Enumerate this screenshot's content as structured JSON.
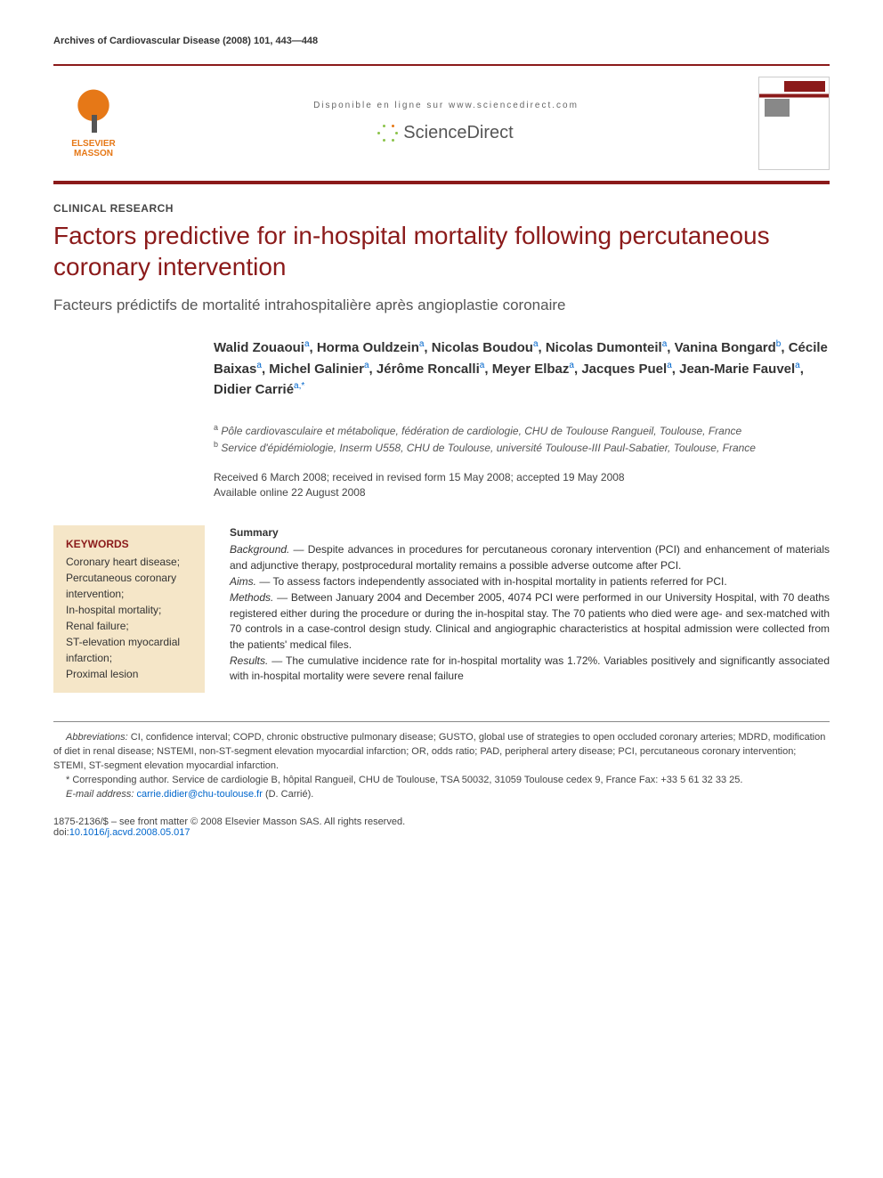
{
  "running_head": "Archives of Cardiovascular Disease (2008) 101, 443—448",
  "banner": {
    "publisher": "ELSEVIER MASSON",
    "available_line": "Disponible en ligne sur www.sciencedirect.com",
    "sd_brand": "ScienceDirect",
    "colors": {
      "brand_red": "#8b1a1a",
      "orange": "#e67817",
      "green": "#8bc34a"
    }
  },
  "section_label": "CLINICAL RESEARCH",
  "title": "Factors predictive for in-hospital mortality following percutaneous coronary intervention",
  "subtitle": "Facteurs prédictifs de mortalité intrahospitalière après angioplastie coronaire",
  "authors": [
    {
      "name": "Walid Zouaoui",
      "aff": "a"
    },
    {
      "name": "Horma Ouldzein",
      "aff": "a"
    },
    {
      "name": "Nicolas Boudou",
      "aff": "a"
    },
    {
      "name": "Nicolas Dumonteil",
      "aff": "a"
    },
    {
      "name": "Vanina Bongard",
      "aff": "b"
    },
    {
      "name": "Cécile Baixas",
      "aff": "a"
    },
    {
      "name": "Michel Galinier",
      "aff": "a"
    },
    {
      "name": "Jérôme Roncalli",
      "aff": "a"
    },
    {
      "name": "Meyer Elbaz",
      "aff": "a"
    },
    {
      "name": "Jacques Puel",
      "aff": "a"
    },
    {
      "name": "Jean-Marie Fauvel",
      "aff": "a"
    },
    {
      "name": "Didier Carrié",
      "aff": "a,*"
    }
  ],
  "affiliations": {
    "a": "Pôle cardiovasculaire et métabolique, fédération de cardiologie, CHU de Toulouse Rangueil, Toulouse, France",
    "b": "Service d'épidémiologie, Inserm U558, CHU de Toulouse, université Toulouse-III Paul-Sabatier, Toulouse, France"
  },
  "history": {
    "line1": "Received 6 March 2008; received in revised form 15 May 2008; accepted 19 May 2008",
    "line2": "Available online 22 August 2008"
  },
  "keywords": {
    "heading": "KEYWORDS",
    "items": [
      "Coronary heart disease",
      "Percutaneous coronary intervention",
      "In-hospital mortality",
      "Renal failure",
      "ST-elevation myocardial infarction",
      "Proximal lesion"
    ]
  },
  "summary": {
    "heading": "Summary",
    "background_label": "Background. —",
    "background": "Despite advances in procedures for percutaneous coronary intervention (PCI) and enhancement of materials and adjunctive therapy, postprocedural mortality remains a possible adverse outcome after PCI.",
    "aims_label": "Aims. —",
    "aims": "To assess factors independently associated with in-hospital mortality in patients referred for PCI.",
    "methods_label": "Methods. —",
    "methods": "Between January 2004 and December 2005, 4074 PCI were performed in our University Hospital, with 70 deaths registered either during the procedure or during the in-hospital stay. The 70 patients who died were age- and sex-matched with 70 controls in a case-control design study. Clinical and angiographic characteristics at hospital admission were collected from the patients' medical files.",
    "results_label": "Results. —",
    "results": "The cumulative incidence rate for in-hospital mortality was 1.72%. Variables positively and significantly associated with in-hospital mortality were severe renal failure"
  },
  "footnotes": {
    "abbrev_label": "Abbreviations:",
    "abbrev": "CI, confidence interval; COPD, chronic obstructive pulmonary disease; GUSTO, global use of strategies to open occluded coronary arteries; MDRD, modification of diet in renal disease; NSTEMI, non-ST-segment elevation myocardial infarction; OR, odds ratio; PAD, peripheral artery disease; PCI, percutaneous coronary intervention; STEMI, ST-segment elevation myocardial infarction.",
    "corr_label": "* Corresponding author.",
    "corr": "Service de cardiologie B, hôpital Rangueil, CHU de Toulouse, TSA 50032, 31059 Toulouse cedex 9, France Fax: +33 5 61 32 33 25.",
    "email_label": "E-mail address:",
    "email": "carrie.didier@chu-toulouse.fr",
    "email_suffix": "(D. Carrié)."
  },
  "copyright": {
    "line": "1875-2136/$ – see front matter © 2008 Elsevier Masson SAS. All rights reserved.",
    "doi_label": "doi:",
    "doi": "10.1016/j.acvd.2008.05.017"
  }
}
